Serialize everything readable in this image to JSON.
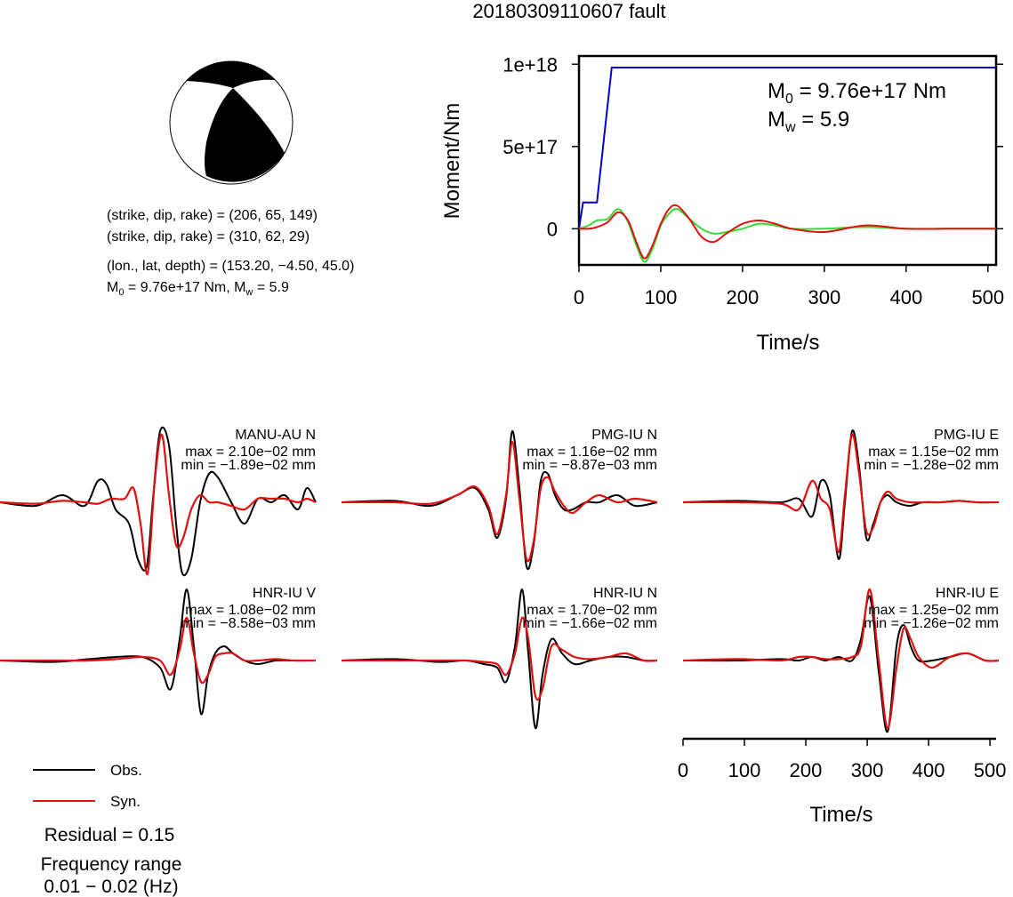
{
  "title": "20180309110607 fault",
  "mechanism": {
    "line1": "(strike, dip, rake) = (206, 65, 149)",
    "line2": "(strike, dip, rake) = (310, 62, 29)",
    "line3": "(lon., lat, depth) = (153.20, −4.50, 45.0)",
    "m0_label": "M",
    "m0_sub": "0",
    "m0_rest": " = 9.76e+17 Nm, M",
    "mw_sub": "w",
    "mw_rest": " = 5.9"
  },
  "moment_chart": {
    "ylabel": "Moment/Nm",
    "xlabel": "Time/s",
    "ytick_labels": [
      "0",
      "5e+17",
      "1e+18"
    ],
    "xtick_labels": [
      "0",
      "100",
      "200",
      "300",
      "400",
      "500"
    ],
    "m0_prefix": "M",
    "m0_sub": "0",
    "m0_value": " = 9.76e+17 Nm",
    "mw_prefix": "M",
    "mw_sub": "w",
    "mw_value": " = 5.9"
  },
  "waveform_axis": {
    "xlabel": "Time/s",
    "xtick_labels": [
      "0",
      "100",
      "200",
      "300",
      "400",
      "500"
    ]
  },
  "legend": {
    "obs": "Obs.",
    "syn": "Syn.",
    "residual": "Residual = 0.15",
    "freq_title": "Frequency range",
    "freq_value": "0.01 − 0.02 (Hz)"
  },
  "colors": {
    "obs": "#000000",
    "syn": "#e01010",
    "moment_cumulative": "#0000cc",
    "moment_rate_green": "#33dd33",
    "moment_rate_red": "#e01010"
  },
  "chart_data": [
    {
      "type": "line",
      "ylabel": "Moment/Nm",
      "xlabel": "Time/s",
      "xlim": [
        0,
        510
      ],
      "ylim": [
        -2.2e+17,
        1.05e+18
      ],
      "series": [
        {
          "x": [
            0,
            5,
            20,
            22,
            40,
            510
          ],
          "values": [
            0,
            1.6e+17,
            1.6e+17,
            1.6e+17,
            9.8e+17,
            9.8e+17
          ]
        },
        {
          "x": [
            0,
            12,
            22,
            35,
            48,
            60,
            70,
            80,
            90,
            100,
            110,
            120,
            135,
            150,
            165,
            180,
            200,
            220,
            240,
            260,
            300,
            350,
            400,
            450,
            510
          ],
          "values": [
            0,
            2e+16,
            5e+16,
            6e+16,
            1.2e+17,
            4e+16,
            -1e+17,
            -2e+17,
            -1.2e+17,
            2e+16,
            9e+16,
            1.2e+17,
            6e+16,
            0.0,
            -3e+16,
            -2e+16,
            0.0,
            3e+16,
            2e+16,
            0.0,
            0.0,
            1e+16,
            0.0,
            0.0,
            0.0
          ]
        },
        {
          "x": [
            0,
            12,
            22,
            35,
            48,
            60,
            70,
            80,
            90,
            100,
            110,
            120,
            135,
            150,
            165,
            180,
            200,
            220,
            240,
            260,
            300,
            350,
            400,
            450,
            510
          ],
          "values": [
            0,
            0.0,
            1e+16,
            4e+16,
            1e+17,
            5e+16,
            -8e+16,
            -1.8e+17,
            -1e+17,
            3e+16,
            1.2e+17,
            1.4e+17,
            6e+16,
            -5e+16,
            -8e+16,
            -3e+16,
            3e+16,
            5e+16,
            3e+16,
            0.0,
            -2e+16,
            2e+16,
            0.0,
            0.0,
            0.0
          ]
        }
      ],
      "annotations": [
        "M0 = 9.76e+17 Nm",
        "Mw = 5.9"
      ]
    },
    {
      "type": "line",
      "xlabel": "Time/s",
      "xlim": [
        0,
        510
      ],
      "panels": [
        {
          "station": "MANU-AU N",
          "max": "max = 2.10e−02 mm",
          "min": "min = −1.89e−02 mm",
          "obs": {
            "x": [
              0,
              40,
              70,
              95,
              110,
              120,
              130,
              145,
              155,
              165,
              172,
              180,
              190,
              198,
              205,
              215,
              225,
              235,
              245,
              260,
              275,
              290,
              305,
              320,
              335,
              345,
              355
            ],
            "values": [
              0,
              -0.05,
              0.1,
              -0.05,
              0.3,
              0.25,
              -0.1,
              -0.3,
              -0.8,
              -0.9,
              0.05,
              1.0,
              0.8,
              -0.3,
              -1.0,
              -0.8,
              0.0,
              0.4,
              0.35,
              0.0,
              -0.3,
              0.05,
              0.0,
              0.1,
              -0.1,
              0.2,
              0.0
            ]
          },
          "syn": {
            "x": [
              0,
              40,
              70,
              95,
              110,
              125,
              140,
              150,
              158,
              166,
              174,
              182,
              190,
              198,
              206,
              215,
              225,
              235,
              245,
              260,
              275,
              290,
              305,
              320,
              335,
              345,
              355
            ],
            "values": [
              0,
              -0.02,
              0.02,
              0.0,
              -0.02,
              0.05,
              0.05,
              0.2,
              -0.3,
              -1.0,
              0.3,
              0.95,
              0.1,
              -0.6,
              -0.5,
              -0.1,
              0.1,
              0.0,
              0.0,
              -0.05,
              -0.1,
              0.05,
              0.05,
              0.05,
              0.0,
              0.05,
              0.0
            ]
          }
        },
        {
          "station": "PMG-IU N",
          "max": "max = 1.16e−02 mm",
          "min": "min = −8.87e−03 mm",
          "obs": {
            "x": [
              0,
              60,
              100,
              130,
              150,
              165,
              175,
              185,
              192,
              200,
              208,
              216,
              224,
              232,
              240,
              250,
              260,
              275,
              290,
              310,
              330,
              355
            ],
            "values": [
              0,
              0.02,
              -0.05,
              0.1,
              0.2,
              -0.1,
              -0.5,
              0.05,
              1.0,
              0.2,
              -0.9,
              -0.6,
              0.3,
              0.4,
              0.1,
              -0.1,
              -0.1,
              0.0,
              0.0,
              0.1,
              -0.05,
              0.0
            ]
          },
          "syn": {
            "x": [
              0,
              60,
              100,
              130,
              150,
              165,
              175,
              185,
              192,
              200,
              208,
              216,
              224,
              232,
              240,
              250,
              260,
              275,
              290,
              310,
              330,
              355
            ],
            "values": [
              0,
              0.0,
              -0.02,
              0.1,
              0.22,
              -0.05,
              -0.45,
              0.1,
              0.85,
              0.05,
              -0.8,
              -0.55,
              0.2,
              0.35,
              0.15,
              -0.05,
              -0.15,
              0.0,
              0.1,
              0.0,
              0.05,
              0.0
            ]
          }
        },
        {
          "station": "PMG-IU E",
          "max": "max = 1.15e−02 mm",
          "min": "min = −1.28e−02 mm",
          "obs": {
            "x": [
              0,
              60,
              110,
              130,
              145,
              155,
              165,
              175,
              182,
              190,
              198,
              206,
              214,
              222,
              230,
              240,
              255,
              270,
              290,
              310,
              330,
              355
            ],
            "values": [
              0,
              0.02,
              0.0,
              0.05,
              -0.2,
              0.3,
              0.1,
              -0.8,
              0.0,
              1.0,
              0.5,
              -0.5,
              -0.3,
              0.0,
              0.1,
              0.0,
              -0.05,
              0.0,
              0.0,
              0.02,
              0.0,
              0.0
            ]
          },
          "syn": {
            "x": [
              0,
              60,
              110,
              130,
              145,
              155,
              165,
              175,
              182,
              190,
              198,
              206,
              214,
              222,
              230,
              240,
              255,
              270,
              290,
              310,
              330,
              355
            ],
            "values": [
              0,
              0.0,
              -0.02,
              -0.1,
              0.3,
              0.05,
              -0.1,
              -0.7,
              0.1,
              0.95,
              0.4,
              -0.4,
              -0.35,
              0.0,
              0.15,
              0.05,
              0.0,
              0.0,
              0.0,
              0.02,
              0.0,
              0.0
            ]
          }
        },
        {
          "station": "HNR-IU V",
          "max": "max = 1.08e−02 mm",
          "min": "min = −8.58e−03 mm",
          "obs": {
            "x": [
              0,
              60,
              100,
              130,
              160,
              180,
              192,
              202,
              210,
              218,
              226,
              234,
              242,
              252,
              262,
              275,
              290,
              310,
              330,
              355
            ],
            "values": [
              0,
              -0.02,
              0.02,
              0.05,
              0.05,
              -0.1,
              -0.4,
              0.3,
              1.0,
              0.2,
              -0.75,
              -0.2,
              0.1,
              0.2,
              0.1,
              0.0,
              -0.05,
              0.0,
              0.0,
              0.0
            ]
          },
          "syn": {
            "x": [
              0,
              60,
              100,
              130,
              160,
              180,
              192,
              202,
              210,
              218,
              226,
              234,
              242,
              252,
              262,
              275,
              290,
              310,
              330,
              355
            ],
            "values": [
              0,
              0.0,
              0.0,
              0.02,
              0.05,
              0.0,
              -0.2,
              0.15,
              0.6,
              0.1,
              -0.3,
              -0.2,
              0.05,
              0.1,
              0.1,
              0.0,
              0.0,
              0.02,
              0.0,
              0.0
            ]
          }
        },
        {
          "station": "HNR-IU N",
          "max": "max = 1.70e−02 mm",
          "min": "min = −1.66e−02 mm",
          "obs": {
            "x": [
              0,
              60,
              110,
              140,
              160,
              175,
              185,
              195,
              203,
              210,
              218,
              226,
              236,
              248,
              262,
              280,
              300,
              320,
              340,
              355
            ],
            "values": [
              0,
              0.02,
              -0.02,
              0.0,
              -0.05,
              -0.1,
              -0.3,
              0.2,
              1.0,
              0.1,
              -0.95,
              -0.2,
              0.3,
              0.1,
              -0.05,
              0.0,
              0.05,
              0.05,
              0.0,
              0.0
            ]
          },
          "syn": {
            "x": [
              0,
              60,
              110,
              140,
              160,
              175,
              185,
              195,
              203,
              210,
              218,
              226,
              236,
              248,
              262,
              280,
              300,
              320,
              340,
              355
            ],
            "values": [
              0,
              0.0,
              0.0,
              0.0,
              -0.02,
              -0.05,
              -0.2,
              0.1,
              0.6,
              0.3,
              -0.5,
              -0.4,
              0.2,
              0.15,
              0.05,
              0.02,
              0.05,
              0.1,
              0.0,
              0.0
            ]
          }
        },
        {
          "station": "HNR-IU E",
          "max": "max = 1.25e−02 mm",
          "min": "min = −1.26e−02 mm",
          "obs": {
            "x": [
              0,
              60,
              110,
              130,
              145,
              160,
              175,
              190,
              200,
              210,
              220,
              230,
              240,
              248,
              256,
              265,
              280,
              300,
              320,
              340,
              355
            ],
            "values": [
              0,
              0.0,
              0.02,
              0.0,
              0.05,
              0.0,
              0.05,
              0.0,
              0.3,
              0.9,
              -0.15,
              -1.0,
              0.2,
              0.5,
              0.2,
              0.0,
              0.0,
              0.05,
              0.1,
              0.0,
              0.0
            ]
          },
          "syn": {
            "x": [
              0,
              60,
              110,
              130,
              145,
              160,
              175,
              190,
              200,
              210,
              220,
              230,
              240,
              248,
              256,
              265,
              280,
              300,
              320,
              340,
              355
            ],
            "values": [
              0,
              0.02,
              0.0,
              0.05,
              0.05,
              0.02,
              0.02,
              0.05,
              0.2,
              1.0,
              0.0,
              -0.95,
              -0.1,
              0.45,
              0.3,
              0.05,
              -0.1,
              0.05,
              0.1,
              0.0,
              0.0
            ]
          }
        }
      ]
    }
  ]
}
